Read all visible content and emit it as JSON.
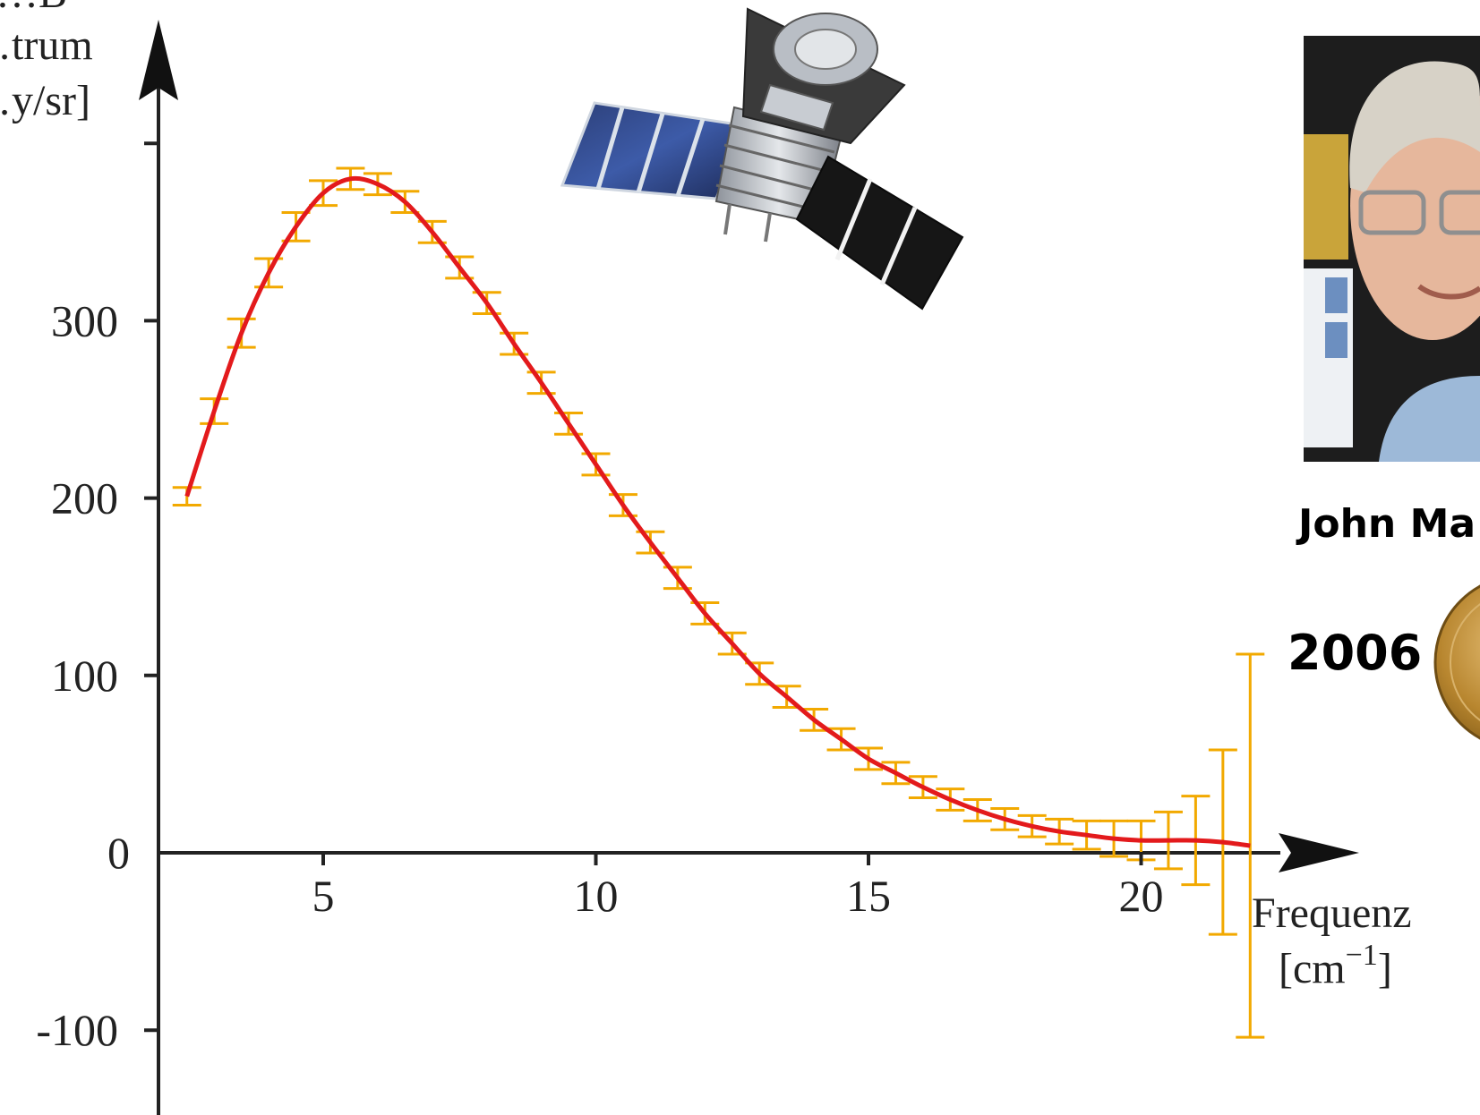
{
  "chart_data": {
    "type": "line",
    "title": "",
    "ylabel_lines": [
      "…trum",
      "…y/sr]"
    ],
    "ylabel_top_fragment": "…B",
    "xlabel_lines": [
      "Frequenz",
      "[cm",
      "−1",
      "]"
    ],
    "xlim": [
      2,
      25
    ],
    "ylim": [
      -150,
      410
    ],
    "x_ticks": [
      5,
      10,
      15,
      20
    ],
    "y_ticks": [
      -100,
      0,
      100,
      200,
      300
    ],
    "grid": false,
    "series": [
      {
        "x": [
          2.5,
          3.0,
          3.5,
          4.0,
          4.5,
          5.0,
          5.5,
          6.0,
          6.5,
          7.0,
          7.5,
          8.0,
          8.5,
          9.0,
          9.5,
          10.0,
          10.5,
          11.0,
          11.5,
          12.0,
          12.5,
          13.0,
          13.5,
          14.0,
          14.5,
          15.0,
          15.5,
          16.0,
          16.5,
          17.0,
          17.5,
          18.0,
          18.5,
          19.0,
          19.5,
          20.0,
          20.5,
          21.0,
          21.5,
          22.0
        ],
        "y": [
          201,
          249,
          293,
          327,
          353,
          372,
          380,
          377,
          367,
          350,
          330,
          310,
          287,
          265,
          242,
          219,
          196,
          175,
          155,
          135,
          118,
          101,
          88,
          75,
          64,
          53,
          45,
          37,
          30,
          24,
          19,
          15,
          12,
          10,
          8,
          7,
          7,
          7,
          6,
          4
        ],
        "err": [
          5,
          7,
          8,
          8,
          8,
          7,
          6,
          6,
          6,
          6,
          6,
          6,
          6,
          6,
          6,
          6,
          6,
          6,
          6,
          6,
          6,
          6,
          6,
          6,
          6,
          6,
          6,
          6,
          6,
          6,
          6,
          6,
          7,
          8,
          10,
          11,
          16,
          25,
          52,
          108
        ],
        "line_color": "#e31a1c",
        "errorbar_color": "#f2a900"
      }
    ]
  },
  "side_panel": {
    "person_name": "John Ma",
    "award_year": "2006"
  },
  "images": {
    "satellite": "satellite-illustration",
    "portrait": "portrait-photo",
    "medal": "gold-medal"
  }
}
